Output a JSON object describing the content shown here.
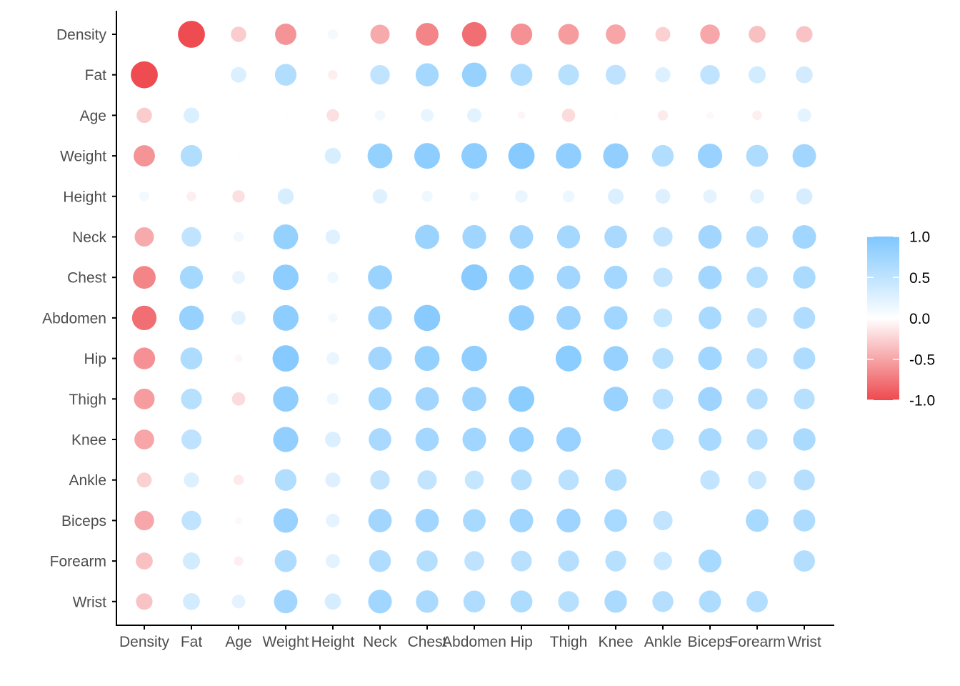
{
  "chart_data": {
    "type": "heatmap",
    "variables": [
      "Density",
      "Fat",
      "Age",
      "Weight",
      "Height",
      "Neck",
      "Chest",
      "Abdomen",
      "Hip",
      "Thigh",
      "Knee",
      "Ankle",
      "Biceps",
      "Forearm",
      "Wrist"
    ],
    "matrix": [
      [
        1.0,
        -0.99,
        -0.28,
        -0.59,
        0.1,
        -0.47,
        -0.68,
        -0.8,
        -0.61,
        -0.55,
        -0.5,
        -0.26,
        -0.49,
        -0.35,
        -0.33
      ],
      [
        -0.99,
        1.0,
        0.29,
        0.61,
        -0.09,
        0.49,
        0.7,
        0.81,
        0.63,
        0.56,
        0.51,
        0.27,
        0.49,
        0.36,
        0.35
      ],
      [
        -0.28,
        0.29,
        1.0,
        -0.01,
        -0.17,
        0.11,
        0.18,
        0.23,
        -0.05,
        -0.2,
        0.02,
        -0.11,
        -0.04,
        -0.09,
        0.21
      ],
      [
        -0.59,
        0.61,
        -0.01,
        1.0,
        0.31,
        0.83,
        0.89,
        0.89,
        0.94,
        0.87,
        0.85,
        0.61,
        0.8,
        0.63,
        0.73
      ],
      [
        0.1,
        -0.09,
        -0.17,
        0.31,
        1.0,
        0.25,
        0.13,
        0.09,
        0.17,
        0.15,
        0.29,
        0.26,
        0.21,
        0.23,
        0.32
      ],
      [
        -0.47,
        0.49,
        0.11,
        0.83,
        0.25,
        1.0,
        0.78,
        0.75,
        0.73,
        0.7,
        0.67,
        0.48,
        0.73,
        0.62,
        0.74
      ],
      [
        -0.68,
        0.7,
        0.18,
        0.89,
        0.13,
        0.78,
        1.0,
        0.92,
        0.83,
        0.73,
        0.72,
        0.48,
        0.73,
        0.58,
        0.66
      ],
      [
        -0.8,
        0.81,
        0.23,
        0.89,
        0.09,
        0.75,
        0.92,
        1.0,
        0.87,
        0.77,
        0.74,
        0.45,
        0.68,
        0.5,
        0.62
      ],
      [
        -0.61,
        0.63,
        -0.05,
        0.94,
        0.17,
        0.73,
        0.83,
        0.87,
        1.0,
        0.9,
        0.82,
        0.56,
        0.74,
        0.55,
        0.63
      ],
      [
        -0.55,
        0.56,
        -0.2,
        0.87,
        0.15,
        0.7,
        0.73,
        0.77,
        0.9,
        1.0,
        0.8,
        0.54,
        0.76,
        0.57,
        0.56
      ],
      [
        -0.5,
        0.51,
        0.02,
        0.85,
        0.29,
        0.67,
        0.72,
        0.74,
        0.82,
        0.8,
        1.0,
        0.61,
        0.68,
        0.56,
        0.66
      ],
      [
        -0.26,
        0.27,
        -0.11,
        0.61,
        0.26,
        0.48,
        0.48,
        0.45,
        0.56,
        0.54,
        0.61,
        1.0,
        0.48,
        0.42,
        0.57
      ],
      [
        -0.49,
        0.49,
        -0.04,
        0.8,
        0.21,
        0.73,
        0.73,
        0.68,
        0.74,
        0.76,
        0.68,
        0.48,
        1.0,
        0.68,
        0.63
      ],
      [
        -0.35,
        0.36,
        -0.09,
        0.63,
        0.23,
        0.62,
        0.58,
        0.5,
        0.55,
        0.57,
        0.56,
        0.42,
        0.68,
        1.0,
        0.59
      ],
      [
        -0.33,
        0.35,
        0.21,
        0.73,
        0.32,
        0.74,
        0.66,
        0.62,
        0.63,
        0.56,
        0.66,
        0.57,
        0.63,
        0.59,
        1.0
      ]
    ],
    "show_diagonal": false,
    "value_range": [
      -1,
      1
    ],
    "xlabel": "",
    "ylabel": "",
    "title": "",
    "legend": {
      "placement": "right",
      "ticks": [
        "1.0",
        "0.5",
        "0.0",
        "-0.5",
        "-1.0"
      ],
      "tick_values": [
        1,
        0.5,
        0,
        -0.5,
        -1
      ]
    },
    "colors": {
      "high": "#7fc7ff",
      "mid": "#ffffff",
      "low": "#ee4a4f",
      "axis": "#000000",
      "tick_text": "#4d4d4d"
    }
  }
}
